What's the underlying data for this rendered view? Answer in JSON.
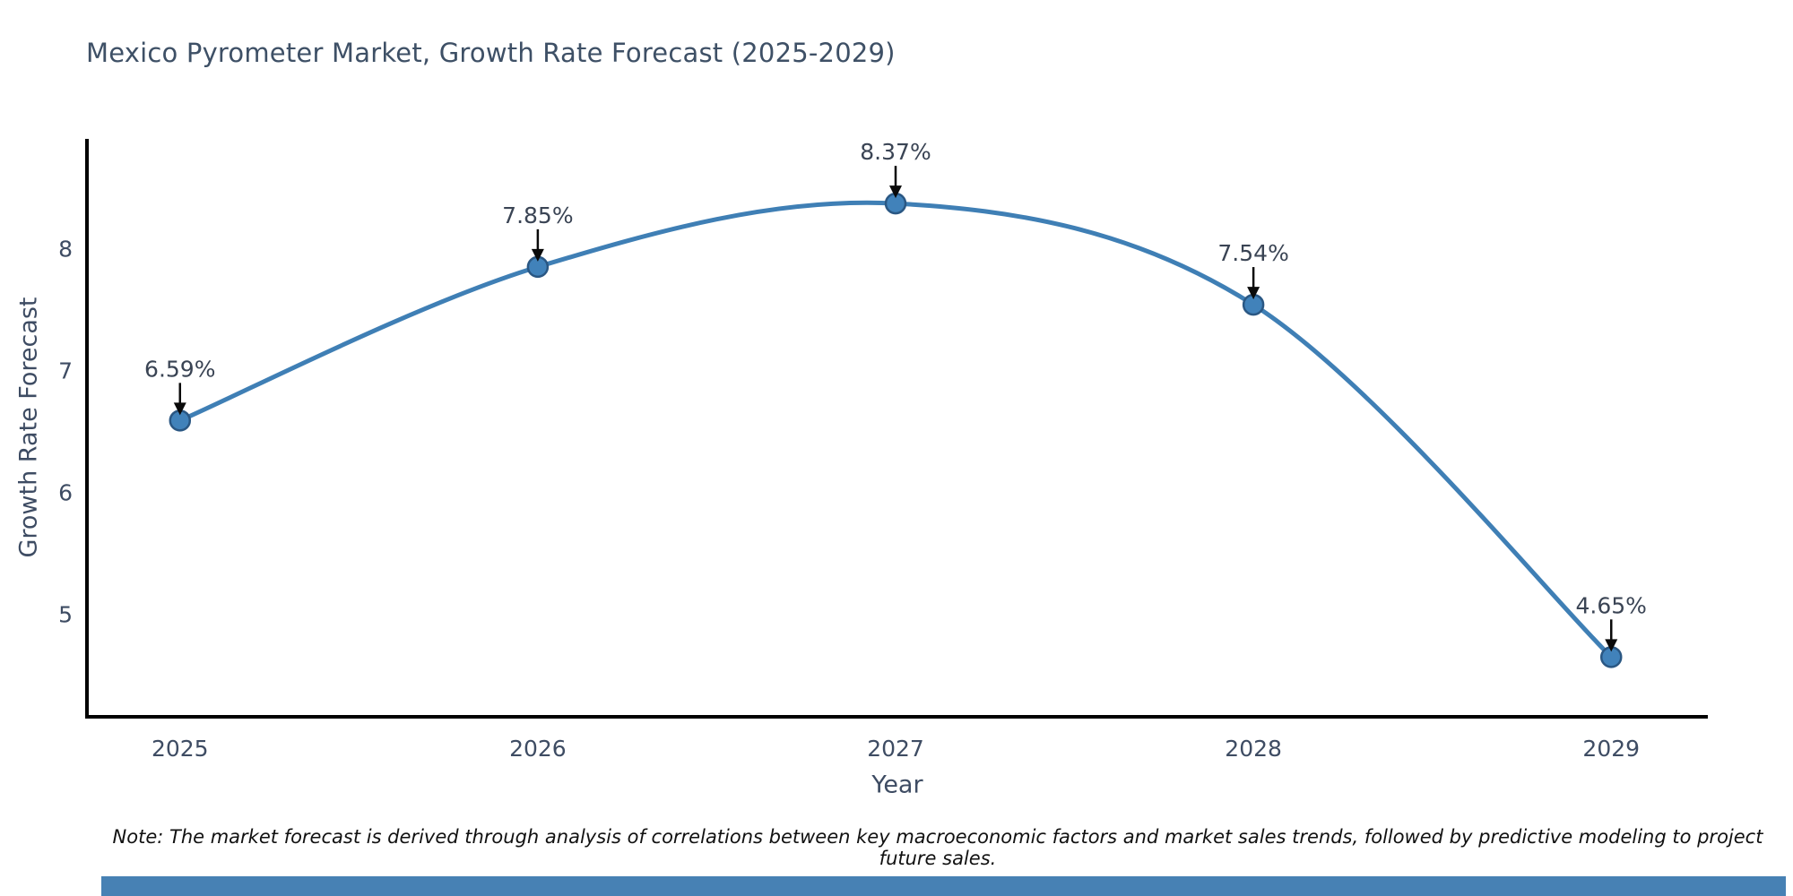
{
  "title": "Mexico Pyrometer Market, Growth Rate Forecast (2025-2029)",
  "note": "Note: The market forecast is derived through analysis of correlations between key macroeconomic factors and market sales trends, followed by predictive modeling to project future sales.",
  "chart_data": {
    "type": "line",
    "title": "Mexico Pyrometer Market, Growth Rate Forecast (2025-2029)",
    "xlabel": "Year",
    "ylabel": "Growth Rate Forecast",
    "x": [
      2025,
      2026,
      2027,
      2028,
      2029
    ],
    "values": [
      6.59,
      7.85,
      8.37,
      7.54,
      4.65
    ],
    "point_labels": [
      "6.59%",
      "7.85%",
      "8.37%",
      "7.54%",
      "4.65%"
    ],
    "x_tick_labels": [
      "2025",
      "2026",
      "2027",
      "2028",
      "2029"
    ],
    "y_ticks": [
      5,
      6,
      7,
      8
    ],
    "xlim": [
      2024.74,
      2029.27
    ],
    "ylim": [
      4.16,
      8.9
    ],
    "grid": false,
    "legend": "none",
    "line_color": "#3f7fb5",
    "marker_color": "#4182ba",
    "marker_edge_color": "#2a5783",
    "annotation_text_color": "#3a4454",
    "annotation_arrow_color": "#0a0a0a",
    "axis_color": "#000000",
    "tick_label_color": "#3e4c63"
  },
  "colors": {
    "background": "#ffffff",
    "title": "#3e5066",
    "footer_bar": "#4781b4"
  }
}
